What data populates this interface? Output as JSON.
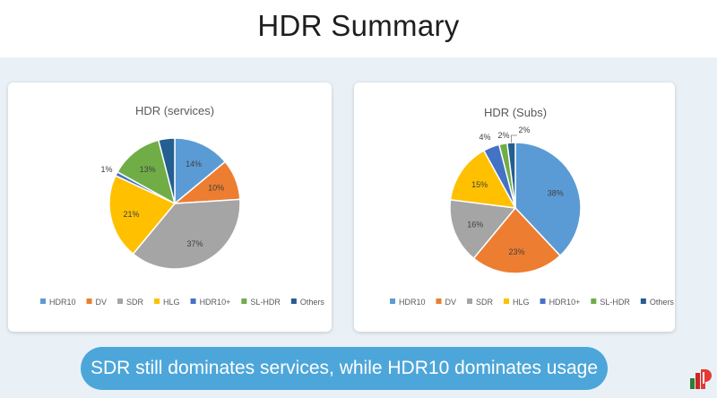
{
  "page": {
    "title": "HDR Summary",
    "banner": "SDR still dominates services, while HDR10 dominates usage"
  },
  "colors": {
    "HDR10": "#5b9bd5",
    "DV": "#ed7d31",
    "SDR": "#a5a5a5",
    "HLG": "#ffc000",
    "HDR10+": "#4472c4",
    "SL-HDR": "#70ad47",
    "Others": "#255e91"
  },
  "chart_data": [
    {
      "type": "pie",
      "title": "HDR (services)",
      "categories": [
        "HDR10",
        "DV",
        "SDR",
        "HLG",
        "HDR10+",
        "SL-HDR",
        "Others"
      ],
      "values": [
        14,
        10,
        37,
        21,
        1,
        13,
        4
      ],
      "labels": [
        "14%",
        "10%",
        "37%",
        "21%",
        "1%",
        "13%",
        ""
      ],
      "legend_position": "bottom"
    },
    {
      "type": "pie",
      "title": "HDR (Subs)",
      "categories": [
        "HDR10",
        "DV",
        "SDR",
        "HLG",
        "HDR10+",
        "SL-HDR",
        "Others"
      ],
      "values": [
        38,
        23,
        16,
        15,
        4,
        2,
        2
      ],
      "labels": [
        "38%",
        "23%",
        "16%",
        "15%",
        "4%",
        "2%",
        "2%"
      ],
      "legend_position": "bottom"
    }
  ]
}
